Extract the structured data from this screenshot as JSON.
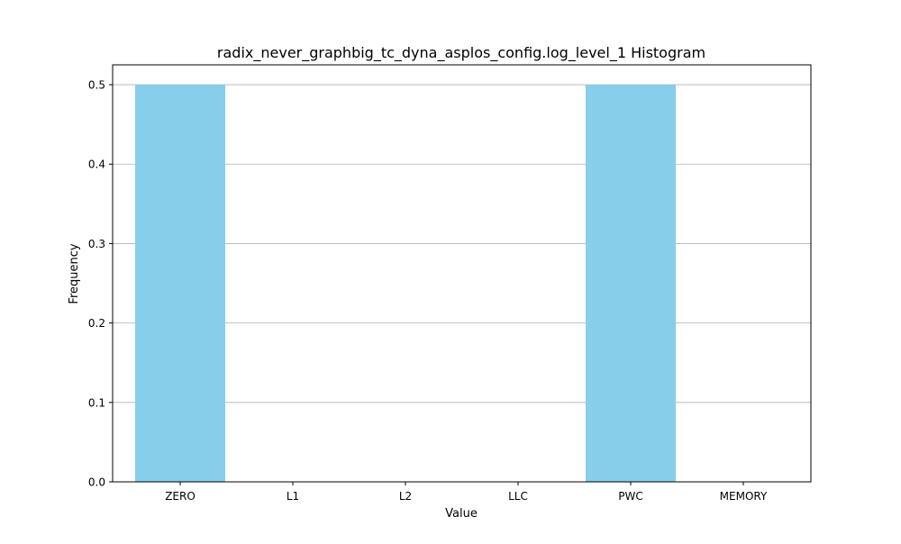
{
  "chart_data": {
    "type": "bar",
    "title": "radix_never_graphbig_tc_dyna_asplos_config.log_level_1 Histogram",
    "xlabel": "Value",
    "ylabel": "Frequency",
    "categories": [
      "ZERO",
      "L1",
      "L2",
      "LLC",
      "PWC",
      "MEMORY"
    ],
    "values": [
      0.5,
      0,
      0,
      0,
      0.5,
      0
    ],
    "ylim": [
      0,
      0.525
    ],
    "yticks": [
      0.0,
      0.1,
      0.2,
      0.3,
      0.4,
      0.5
    ],
    "ytick_labels": [
      "0.0",
      "0.1",
      "0.2",
      "0.3",
      "0.4",
      "0.5"
    ],
    "grid": {
      "axis": "y",
      "on": true
    },
    "bar_color": "#87ceeb",
    "grid_color": "#b0b0b0"
  }
}
